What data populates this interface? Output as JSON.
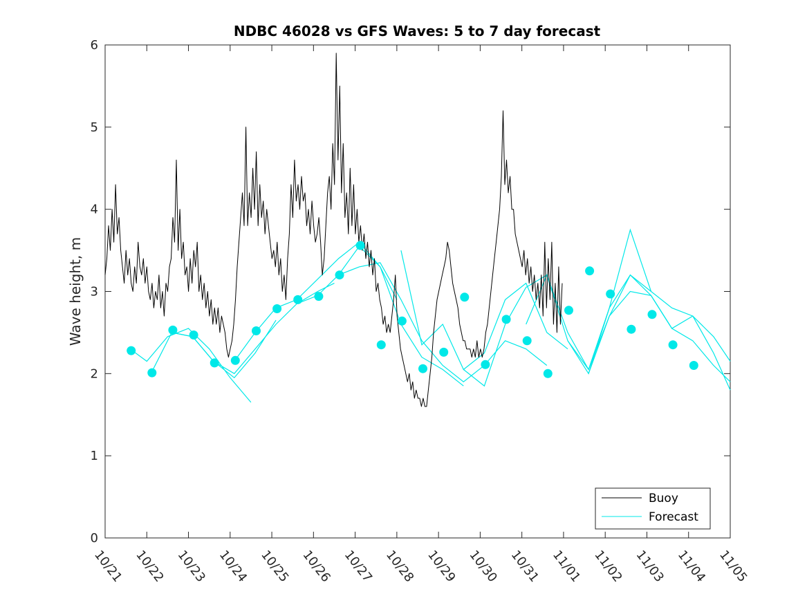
{
  "chart_data": {
    "type": "line",
    "title": "NDBC 46028 vs GFS Waves: 5 to 7 day forecast",
    "xlabel": "",
    "ylabel": "Wave height, m",
    "xlim": [
      0,
      15
    ],
    "ylim": [
      0,
      6
    ],
    "x_ticks": [
      0,
      1,
      2,
      3,
      4,
      5,
      6,
      7,
      8,
      9,
      10,
      11,
      12,
      13,
      14,
      15
    ],
    "x_tick_labels": [
      "10/21",
      "10/22",
      "10/23",
      "10/24",
      "10/25",
      "10/26",
      "10/27",
      "10/28",
      "10/29",
      "10/30",
      "10/31",
      "11/01",
      "11/02",
      "11/03",
      "11/04",
      "11/05"
    ],
    "y_ticks": [
      0,
      1,
      2,
      3,
      4,
      5,
      6
    ],
    "y_tick_labels": [
      "0",
      "1",
      "2",
      "3",
      "4",
      "5",
      "6"
    ],
    "legend": {
      "position": "bottom-right",
      "entries": [
        {
          "name": "Buoy",
          "color": "#000000"
        },
        {
          "name": "Forecast",
          "color": "#00e8e8"
        }
      ]
    },
    "buoy": {
      "name": "Buoy",
      "color": "#000000",
      "x_start": 0.0,
      "x_step": 0.0417,
      "y": [
        3.2,
        3.4,
        3.8,
        3.5,
        4.0,
        3.6,
        4.3,
        3.7,
        3.9,
        3.5,
        3.3,
        3.1,
        3.5,
        3.2,
        3.4,
        3.1,
        3.0,
        3.3,
        3.1,
        3.6,
        3.3,
        3.2,
        3.4,
        3.1,
        3.3,
        3.0,
        2.9,
        3.1,
        2.8,
        3.0,
        2.9,
        3.2,
        2.8,
        3.0,
        2.7,
        3.1,
        3.0,
        3.3,
        3.4,
        3.9,
        3.6,
        4.6,
        3.5,
        4.0,
        3.4,
        3.6,
        3.2,
        3.3,
        3.0,
        3.4,
        3.1,
        3.5,
        3.3,
        3.6,
        3.0,
        3.2,
        2.9,
        3.1,
        2.8,
        3.0,
        2.7,
        2.9,
        2.6,
        2.8,
        2.6,
        2.8,
        2.5,
        2.7,
        2.6,
        2.5,
        2.3,
        2.2,
        2.3,
        2.4,
        2.6,
        2.9,
        3.3,
        3.6,
        3.9,
        4.2,
        3.8,
        5.0,
        3.8,
        4.2,
        3.9,
        4.5,
        4.0,
        4.7,
        3.8,
        4.3,
        3.9,
        4.1,
        3.7,
        4.0,
        3.8,
        3.6,
        3.4,
        3.5,
        3.3,
        3.6,
        3.2,
        3.4,
        3.0,
        3.2,
        2.9,
        3.4,
        3.7,
        4.3,
        3.9,
        4.6,
        4.1,
        4.3,
        4.0,
        4.4,
        4.1,
        4.2,
        3.8,
        4.0,
        3.7,
        4.1,
        3.8,
        3.6,
        3.7,
        3.9,
        3.6,
        3.2,
        3.4,
        3.8,
        4.2,
        4.4,
        4.0,
        4.8,
        4.3,
        5.9,
        4.6,
        5.5,
        4.2,
        4.8,
        3.9,
        4.2,
        3.7,
        4.5,
        3.8,
        4.3,
        3.7,
        4.0,
        3.6,
        3.8,
        3.5,
        3.7,
        3.4,
        3.6,
        3.3,
        3.5,
        3.2,
        3.4,
        3.0,
        3.1,
        2.9,
        2.8,
        2.6,
        2.7,
        2.5,
        2.6,
        2.5,
        2.7,
        2.9,
        3.2,
        2.7,
        2.5,
        2.3,
        2.2,
        2.1,
        2.0,
        1.9,
        2.0,
        1.8,
        1.9,
        1.7,
        1.8,
        1.7,
        1.7,
        1.6,
        1.7,
        1.6,
        1.6,
        1.8,
        2.0,
        2.2,
        2.5,
        2.7,
        2.9,
        3.0,
        3.1,
        3.2,
        3.3,
        3.4,
        3.6,
        3.5,
        3.3,
        3.1,
        3.0,
        2.9,
        2.8,
        2.6,
        2.5,
        2.4,
        2.4,
        2.3,
        2.3,
        2.3,
        2.2,
        2.3,
        2.2,
        2.4,
        2.2,
        2.3,
        2.2,
        2.3,
        2.5,
        2.6,
        2.8,
        3.0,
        3.2,
        3.4,
        3.6,
        3.8,
        4.0,
        4.4,
        5.2,
        4.3,
        4.6,
        4.2,
        4.4,
        4.0,
        4.0,
        3.7,
        3.6,
        3.5,
        3.4,
        3.3,
        3.5,
        3.2,
        3.4,
        3.1,
        3.3,
        3.0,
        3.2,
        2.9,
        3.1,
        2.8,
        3.2,
        2.7,
        3.6,
        2.8,
        3.4,
        2.9,
        3.6,
        2.6,
        3.1,
        2.5,
        3.3,
        2.6,
        3.1
      ]
    },
    "forecast_markers": {
      "name": "Forecast",
      "color": "#00e8e8",
      "x": [
        0.625,
        1.125,
        1.625,
        2.125,
        2.625,
        3.125,
        3.625,
        4.125,
        4.625,
        5.125,
        5.625,
        6.125,
        6.625,
        7.125,
        7.625,
        8.125,
        8.625,
        9.125,
        9.625,
        10.125,
        10.625,
        11.125,
        11.625,
        12.125,
        12.625,
        13.125,
        13.625,
        14.125
      ],
      "y": [
        2.28,
        2.01,
        2.53,
        2.47,
        2.13,
        2.16,
        2.52,
        2.79,
        2.9,
        2.94,
        3.2,
        3.56,
        2.35,
        2.64,
        2.06,
        2.26,
        2.93,
        2.11,
        2.66,
        2.4,
        2.0,
        2.77,
        3.25,
        2.97,
        2.54,
        2.72,
        2.35,
        2.1
      ]
    },
    "forecast_lines": [
      {
        "name": "Forecast",
        "x": [
          0.6,
          1.0,
          1.5,
          2.0,
          2.5,
          3.0,
          3.5
        ],
        "y": [
          2.3,
          2.15,
          2.45,
          2.55,
          2.3,
          1.95,
          1.65
        ]
      },
      {
        "name": "Forecast",
        "x": [
          1.1,
          1.6,
          2.1,
          2.6,
          3.1,
          3.6,
          4.1
        ],
        "y": [
          2.0,
          2.5,
          2.45,
          2.15,
          1.95,
          2.25,
          2.65
        ]
      },
      {
        "name": "Forecast",
        "x": [
          1.6,
          2.1,
          2.6,
          3.1,
          3.6,
          4.1,
          4.6,
          5.1,
          5.5
        ],
        "y": [
          2.5,
          2.45,
          2.15,
          2.0,
          2.3,
          2.6,
          2.85,
          3.0,
          3.1
        ]
      },
      {
        "name": "Forecast",
        "x": [
          3.1,
          3.6,
          4.1,
          4.6,
          5.1,
          5.6,
          6.1,
          6.6,
          7.0
        ],
        "y": [
          2.15,
          2.5,
          2.8,
          2.9,
          3.15,
          3.4,
          3.6,
          3.3,
          2.9
        ]
      },
      {
        "name": "Forecast",
        "x": [
          4.6,
          5.1,
          5.6,
          6.1,
          6.6,
          7.1,
          7.6,
          8.1,
          8.6
        ],
        "y": [
          2.85,
          2.95,
          3.2,
          3.55,
          3.3,
          2.6,
          2.2,
          2.05,
          1.85
        ]
      },
      {
        "name": "Forecast",
        "x": [
          5.6,
          6.1,
          6.6,
          7.1,
          7.6,
          8.1,
          8.6,
          9.1,
          9.6,
          10.1,
          10.6
        ],
        "y": [
          3.2,
          3.3,
          3.35,
          2.9,
          2.4,
          2.1,
          1.9,
          2.1,
          2.4,
          2.3,
          2.1
        ]
      },
      {
        "name": "Forecast",
        "x": [
          7.1,
          7.6,
          8.1,
          8.6,
          9.1,
          9.6,
          10.1,
          10.6,
          11.1
        ],
        "y": [
          3.5,
          2.35,
          2.6,
          2.05,
          2.25,
          2.9,
          3.1,
          2.5,
          2.3
        ]
      },
      {
        "name": "Forecast",
        "x": [
          8.6,
          9.1,
          9.6,
          10.1,
          10.6,
          11.1,
          11.6,
          12.1,
          12.6,
          13.1
        ],
        "y": [
          2.05,
          1.85,
          2.6,
          3.05,
          3.2,
          2.5,
          2.05,
          2.7,
          3.2,
          3.0
        ]
      },
      {
        "name": "Forecast",
        "x": [
          10.1,
          10.6,
          11.1,
          11.6,
          12.1,
          12.6,
          13.1,
          13.6,
          14.1,
          14.6,
          15.0
        ],
        "y": [
          2.6,
          3.2,
          2.4,
          2.0,
          2.8,
          3.75,
          3.0,
          2.8,
          2.7,
          2.45,
          2.15
        ]
      },
      {
        "name": "Forecast",
        "x": [
          11.1,
          11.6,
          12.1,
          12.6,
          13.1,
          13.6,
          14.1,
          14.6,
          15.0
        ],
        "y": [
          2.4,
          2.05,
          2.8,
          3.2,
          2.95,
          2.55,
          2.4,
          2.1,
          1.9
        ]
      },
      {
        "name": "Forecast",
        "x": [
          11.6,
          12.1,
          12.6,
          13.1,
          13.6,
          14.1,
          14.6,
          15.0
        ],
        "y": [
          2.0,
          2.7,
          3.0,
          2.95,
          2.55,
          2.7,
          2.25,
          1.8
        ]
      }
    ]
  }
}
